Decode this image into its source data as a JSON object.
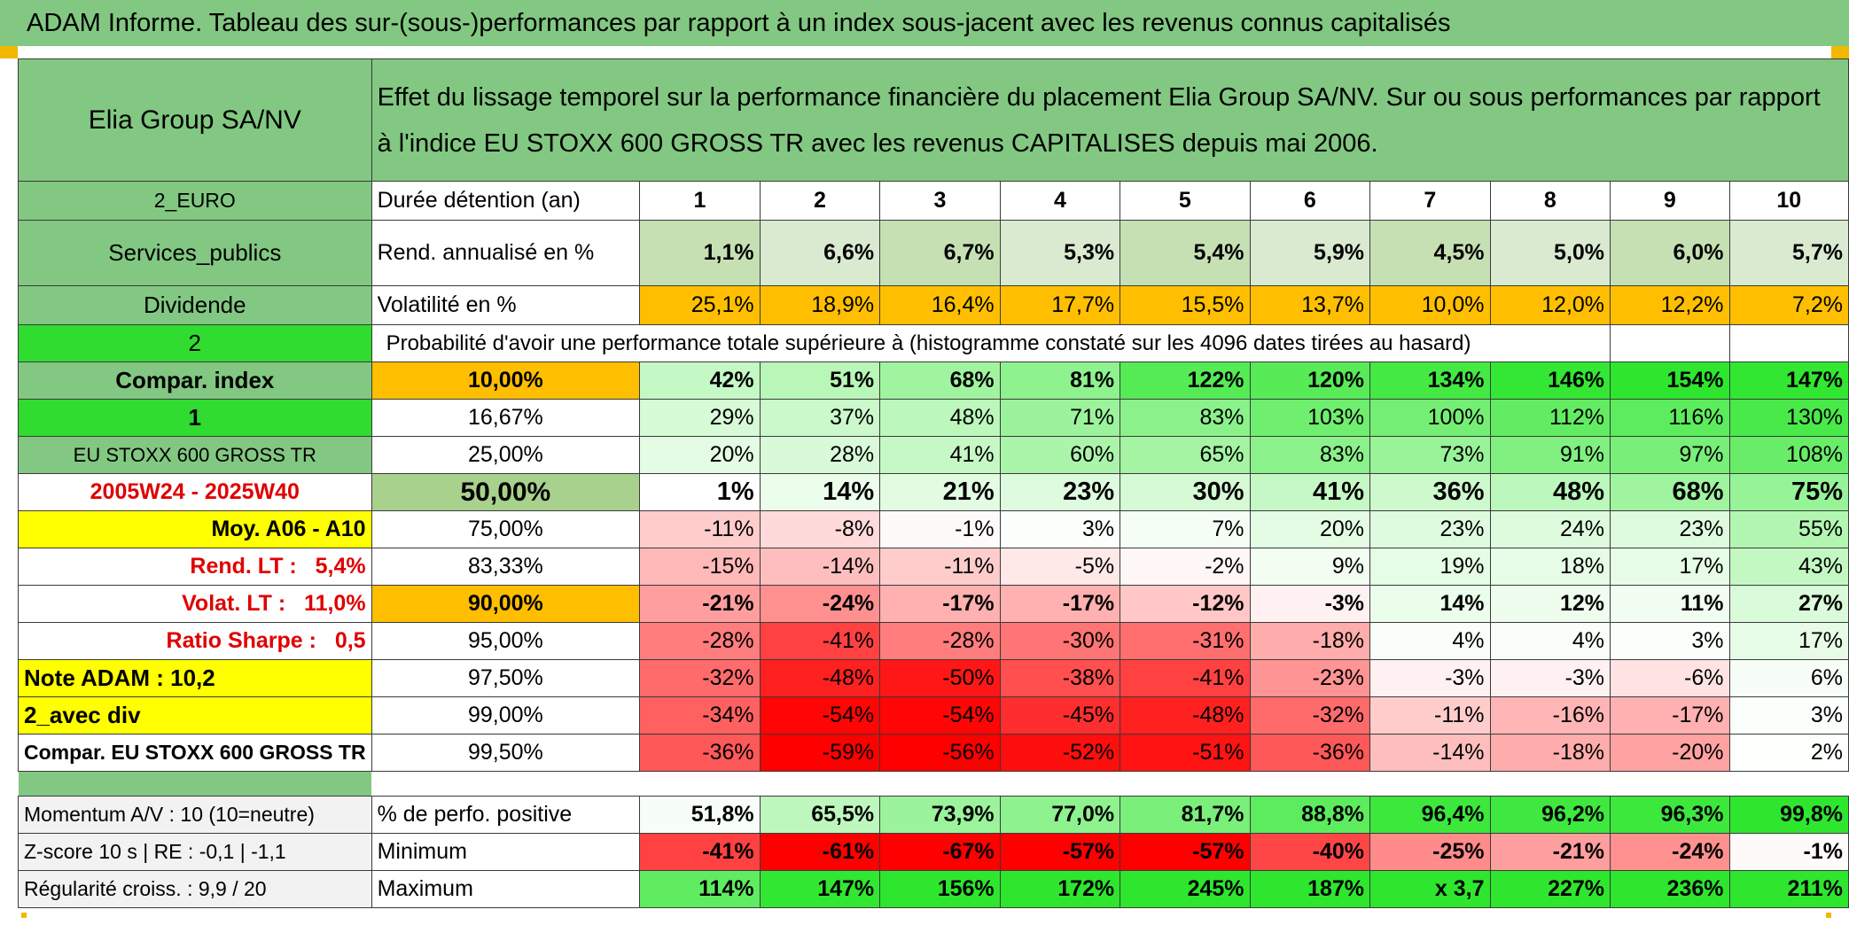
{
  "title": "ADAM Informe. Tableau des sur-(sous-)performances par rapport à un index sous-jacent avec les revenus connus capitalisés",
  "header": {
    "asset": "Elia Group SA/NV",
    "description_line1": "Effet du lissage temporel sur la performance financière du placement Elia Group SA/NV. Sur ou sous performances par rapport",
    "description_line2": "à l'indice EU STOXX 600 GROSS TR avec les revenus CAPITALISES depuis mai 2006."
  },
  "left_labels": {
    "currency": "2_EURO",
    "sector": "Services_publics",
    "dividend": "Dividende",
    "num2": "2",
    "compar_index": "Compar. index",
    "num1": "1",
    "index_name": "EU STOXX 600 GROSS TR",
    "period": "2005W24 - 2025W40",
    "moy": "Moy. A06 - A10",
    "rend_lt": "Rend. LT :   5,4%",
    "volat_lt": "Volat. LT :   11,0%",
    "sharpe": "Ratio Sharpe :   0,5",
    "note": "Note ADAM : 10,2",
    "avec_div": "2_avec div",
    "compar_full": "Compar. EU STOXX 600 GROSS TR",
    "momentum": "Momentum A/V : 10 (10=neutre)",
    "zscore": "Z-score 10 s | RE : -0,1 | -1,1",
    "regularite": "Régularité croiss. : 9,9 / 20"
  },
  "row_labels": {
    "duree": "Durée détention (an)",
    "rend": "Rend. annualisé en %",
    "volat": "Volatilité en %",
    "proba": "Probabilité d'avoir une performance totale supérieure à (histogramme constaté sur les 4096 dates tirées au hasard)",
    "positive": "% de perfo. positive",
    "minimum": "Minimum",
    "maximum": "Maximum"
  },
  "years": [
    "1",
    "2",
    "3",
    "4",
    "5",
    "6",
    "7",
    "8",
    "9",
    "10"
  ],
  "rend": [
    "1,1%",
    "6,6%",
    "6,7%",
    "5,3%",
    "5,4%",
    "5,9%",
    "4,5%",
    "5,0%",
    "6,0%",
    "5,7%"
  ],
  "volat": [
    "25,1%",
    "18,9%",
    "16,4%",
    "17,7%",
    "15,5%",
    "13,7%",
    "10,0%",
    "12,0%",
    "12,2%",
    "7,2%"
  ],
  "percentiles": [
    {
      "p": "10,00%",
      "vals": [
        "42%",
        "51%",
        "68%",
        "81%",
        "122%",
        "120%",
        "134%",
        "146%",
        "154%",
        "147%"
      ],
      "bold": true
    },
    {
      "p": "16,67%",
      "vals": [
        "29%",
        "37%",
        "48%",
        "71%",
        "83%",
        "103%",
        "100%",
        "112%",
        "116%",
        "130%"
      ],
      "bold": false
    },
    {
      "p": "25,00%",
      "vals": [
        "20%",
        "28%",
        "41%",
        "60%",
        "65%",
        "83%",
        "73%",
        "91%",
        "97%",
        "108%"
      ],
      "bold": false
    },
    {
      "p": "50,00%",
      "vals": [
        "1%",
        "14%",
        "21%",
        "23%",
        "30%",
        "41%",
        "36%",
        "48%",
        "68%",
        "75%"
      ],
      "bold": true
    },
    {
      "p": "75,00%",
      "vals": [
        "-11%",
        "-8%",
        "-1%",
        "3%",
        "7%",
        "20%",
        "23%",
        "24%",
        "23%",
        "55%"
      ],
      "bold": false
    },
    {
      "p": "83,33%",
      "vals": [
        "-15%",
        "-14%",
        "-11%",
        "-5%",
        "-2%",
        "9%",
        "19%",
        "18%",
        "17%",
        "43%"
      ],
      "bold": false
    },
    {
      "p": "90,00%",
      "vals": [
        "-21%",
        "-24%",
        "-17%",
        "-17%",
        "-12%",
        "-3%",
        "14%",
        "12%",
        "11%",
        "27%"
      ],
      "bold": true
    },
    {
      "p": "95,00%",
      "vals": [
        "-28%",
        "-41%",
        "-28%",
        "-30%",
        "-31%",
        "-18%",
        "4%",
        "4%",
        "3%",
        "17%"
      ],
      "bold": false
    },
    {
      "p": "97,50%",
      "vals": [
        "-32%",
        "-48%",
        "-50%",
        "-38%",
        "-41%",
        "-23%",
        "-3%",
        "-3%",
        "-6%",
        "6%"
      ],
      "bold": false
    },
    {
      "p": "99,00%",
      "vals": [
        "-34%",
        "-54%",
        "-54%",
        "-45%",
        "-48%",
        "-32%",
        "-11%",
        "-16%",
        "-17%",
        "3%"
      ],
      "bold": false
    },
    {
      "p": "99,50%",
      "vals": [
        "-36%",
        "-59%",
        "-56%",
        "-52%",
        "-51%",
        "-36%",
        "-14%",
        "-18%",
        "-20%",
        "2%"
      ],
      "bold": false
    }
  ],
  "positive": [
    "51,8%",
    "65,5%",
    "73,9%",
    "77,0%",
    "81,7%",
    "88,8%",
    "96,4%",
    "96,2%",
    "96,3%",
    "99,8%"
  ],
  "minimum": [
    "-41%",
    "-61%",
    "-67%",
    "-57%",
    "-57%",
    "-40%",
    "-25%",
    "-21%",
    "-24%",
    "-1%"
  ],
  "maximum": [
    "114%",
    "147%",
    "156%",
    "172%",
    "245%",
    "187%",
    "x 3,7",
    "227%",
    "236%",
    "211%"
  ],
  "colors": {
    "header_green": "#82c882",
    "lime": "#2fdc2f",
    "yellow": "#ffff00",
    "orange": "#ffbf00",
    "rend_green": "#c6e0b4",
    "red_text": "#e00000"
  }
}
